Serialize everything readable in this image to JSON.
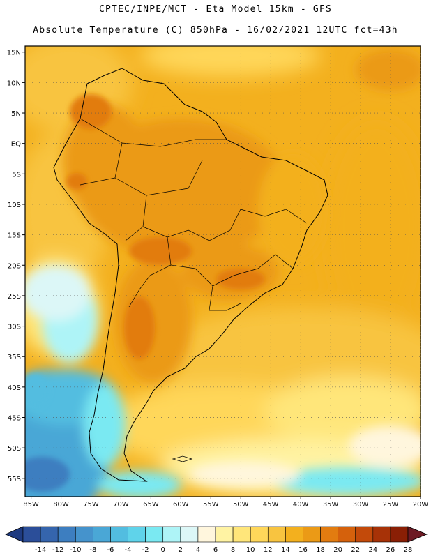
{
  "header": {
    "line1": "CPTEC/INPE/MCT -  Eta Model 15km - GFS",
    "line2": "Absolute Temperature (C) 850hPa - 16/02/2021 12UTC fct=43h"
  },
  "axes": {
    "lat_labels": [
      "15N",
      "10N",
      "5N",
      "EQ",
      "5S",
      "10S",
      "15S",
      "20S",
      "25S",
      "30S",
      "35S",
      "40S",
      "45S",
      "50S",
      "55S"
    ],
    "lon_labels": [
      "85W",
      "80W",
      "75W",
      "70W",
      "65W",
      "60W",
      "55W",
      "50W",
      "45W",
      "40W",
      "35W",
      "30W",
      "25W",
      "20W"
    ]
  },
  "colorbar": {
    "ticks": [
      "-14",
      "-12",
      "-10",
      "-8",
      "-6",
      "-4",
      "-2",
      "0",
      "2",
      "4",
      "6",
      "8",
      "10",
      "12",
      "14",
      "16",
      "18",
      "20",
      "22",
      "24",
      "26",
      "28"
    ],
    "colors": [
      "#2b4e99",
      "#3565ad",
      "#3d7ec0",
      "#4593cc",
      "#4aa7d6",
      "#52bde0",
      "#5fd3ea",
      "#7ae9f2",
      "#aef4f7",
      "#dcf7f7",
      "#fff6dd",
      "#fff3a3",
      "#ffe67a",
      "#ffd75a",
      "#f8c440",
      "#f3b01e",
      "#eb9a16",
      "#e27c10",
      "#d5610c",
      "#c34a0a",
      "#a73207",
      "#8a1f05"
    ],
    "under_color": "#1e3a80",
    "over_color": "#6e1a24"
  },
  "chart_data": {
    "type": "heatmap",
    "title": "Absolute Temperature (C) 850hPa - 16/02/2021 12UTC fct=43h",
    "variable": "Absolute Temperature",
    "unit": "C",
    "level": "850hPa",
    "model": "Eta Model 15km - GFS",
    "init_time": "16/02/2021 12UTC",
    "forecast_hour": 43,
    "lon_range": [
      -86,
      -20
    ],
    "lat_range": [
      -58,
      16
    ],
    "color_levels": [
      -14,
      -12,
      -10,
      -8,
      -6,
      -4,
      -2,
      0,
      2,
      4,
      6,
      8,
      10,
      12,
      14,
      16,
      18,
      20,
      22,
      24,
      26,
      28
    ]
  }
}
